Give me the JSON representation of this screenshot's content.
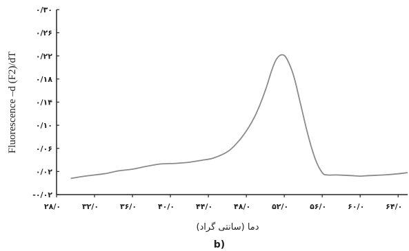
{
  "chart_data": {
    "type": "line",
    "title": "",
    "panel_label": "b)",
    "xlabel": "دما (سانتی گراد)",
    "ylabel": "Fluorescence –d (F2)/dT",
    "xlim": [
      28,
      65
    ],
    "ylim": [
      -0.02,
      0.3
    ],
    "x_ticks": [
      28,
      32,
      36,
      40,
      44,
      48,
      52,
      56,
      60,
      64
    ],
    "x_tick_labels": [
      "۲۸/۰",
      "۳۲/۰",
      "۳۶/۰",
      "۴۰/۰",
      "۴۴/۰",
      "۴۸/۰",
      "۵۲/۰",
      "۵۶/۰",
      "۶۰/۰",
      "۶۴/۰"
    ],
    "y_ticks": [
      -0.02,
      0.02,
      0.06,
      0.1,
      0.14,
      0.18,
      0.22,
      0.26,
      0.3
    ],
    "y_tick_labels": [
      "-۰/۰۲",
      "۰/۰۲",
      "۰/۰۶",
      "۰/۱۰",
      "۰/۱۴",
      "۰/۱۸",
      "۰/۲۲",
      "۰/۲۶",
      "۰/۳۰"
    ],
    "grid": false,
    "legend": "none",
    "series": [
      {
        "color": "#8a8a8a",
        "x": [
          29.5,
          31,
          33,
          34.5,
          36,
          37.5,
          39,
          40.5,
          42,
          43.5,
          44.5,
          46,
          47,
          48,
          49,
          50,
          50.7,
          51.2,
          51.8,
          52.3,
          53,
          53.7,
          54.5,
          55.3,
          56,
          56.5,
          57.5,
          59,
          60,
          61,
          62.5,
          64,
          65
        ],
        "y": [
          0.008,
          0.012,
          0.016,
          0.021,
          0.024,
          0.029,
          0.033,
          0.034,
          0.036,
          0.04,
          0.043,
          0.054,
          0.069,
          0.09,
          0.119,
          0.16,
          0.196,
          0.215,
          0.222,
          0.214,
          0.185,
          0.138,
          0.083,
          0.04,
          0.018,
          0.014,
          0.014,
          0.013,
          0.012,
          0.013,
          0.014,
          0.016,
          0.018
        ]
      }
    ]
  }
}
